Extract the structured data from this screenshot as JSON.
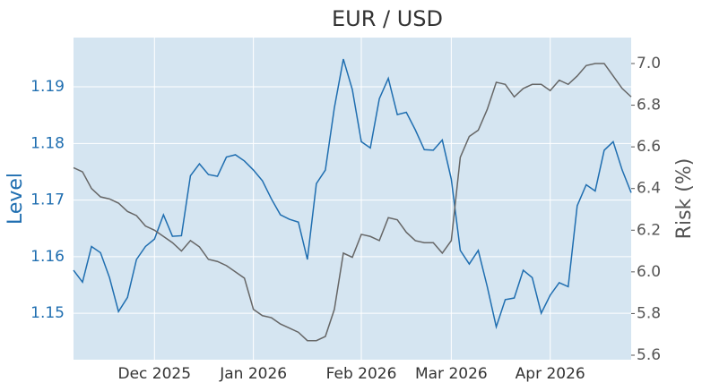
{
  "chart_data": {
    "type": "line",
    "title": "EUR / USD",
    "ylabel": "Level",
    "y2label": "Risk (%)",
    "categories": [
      null,
      null,
      null,
      null,
      null,
      null,
      null,
      null,
      null,
      "Dec 2025",
      null,
      null,
      null,
      null,
      null,
      null,
      null,
      null,
      null,
      null,
      "Jan 2026",
      null,
      null,
      null,
      null,
      null,
      null,
      null,
      null,
      null,
      null,
      null,
      "Feb 2026",
      null,
      null,
      null,
      null,
      null,
      null,
      null,
      null,
      null,
      "Mar 2026",
      null,
      null,
      null,
      null,
      null,
      null,
      null,
      null,
      null,
      null,
      "Apr 2026",
      null,
      null,
      null,
      null,
      null,
      null,
      null,
      null,
      null
    ],
    "series": [
      {
        "name": "Level",
        "color": "#1f6eb0",
        "values": [
          1.1576,
          1.1555,
          1.1618,
          1.1607,
          1.1563,
          1.1503,
          1.1528,
          1.1595,
          1.1618,
          1.1631,
          1.1674,
          1.1636,
          1.1637,
          1.1743,
          1.1764,
          1.1745,
          1.1742,
          1.1776,
          1.178,
          1.1769,
          1.1753,
          1.1734,
          1.1702,
          1.1674,
          1.1666,
          1.1661,
          1.1595,
          1.1729,
          1.1753,
          1.1863,
          1.1949,
          1.1895,
          1.1803,
          1.1792,
          1.1879,
          1.1915,
          1.1851,
          1.1855,
          1.1824,
          1.1789,
          1.1788,
          1.1806,
          1.1737,
          1.1611,
          1.1587,
          1.1611,
          1.1547,
          1.1476,
          1.1524,
          1.1527,
          1.1576,
          1.1563,
          1.15,
          1.1532,
          1.1554,
          1.1547,
          1.169,
          1.1727,
          1.1716,
          1.1788,
          1.1803,
          1.1753,
          1.1713
        ]
      },
      {
        "name": "Risk (%)",
        "color": "#666666",
        "axis": "y2",
        "values": [
          6.5,
          6.48,
          6.4,
          6.36,
          6.35,
          6.33,
          6.29,
          6.27,
          6.22,
          6.2,
          6.17,
          6.14,
          6.1,
          6.15,
          6.12,
          6.06,
          6.05,
          6.03,
          6.0,
          5.97,
          5.82,
          5.79,
          5.78,
          5.75,
          5.73,
          5.71,
          5.67,
          5.67,
          5.69,
          5.82,
          6.09,
          6.07,
          6.18,
          6.17,
          6.15,
          6.26,
          6.25,
          6.19,
          6.15,
          6.14,
          6.14,
          6.09,
          6.15,
          6.55,
          6.65,
          6.68,
          6.78,
          6.91,
          6.9,
          6.84,
          6.88,
          6.9,
          6.9,
          6.87,
          6.92,
          6.9,
          6.94,
          6.99,
          7.0,
          7.0,
          6.94,
          6.88,
          6.84
        ]
      }
    ],
    "ylim": [
      1.1418,
      1.1987
    ],
    "yticks": [
      1.15,
      1.16,
      1.17,
      1.18,
      1.19
    ],
    "y2lim": [
      5.5785,
      7.1245
    ],
    "y2ticks": [
      5.6,
      5.8,
      {
        "value": 6,
        "label": "6.0"
      },
      6.2,
      6.4,
      6.6,
      6.8,
      {
        "value": 7,
        "label": "7.0"
      }
    ],
    "grid": true,
    "background": "#d5e5f1"
  }
}
